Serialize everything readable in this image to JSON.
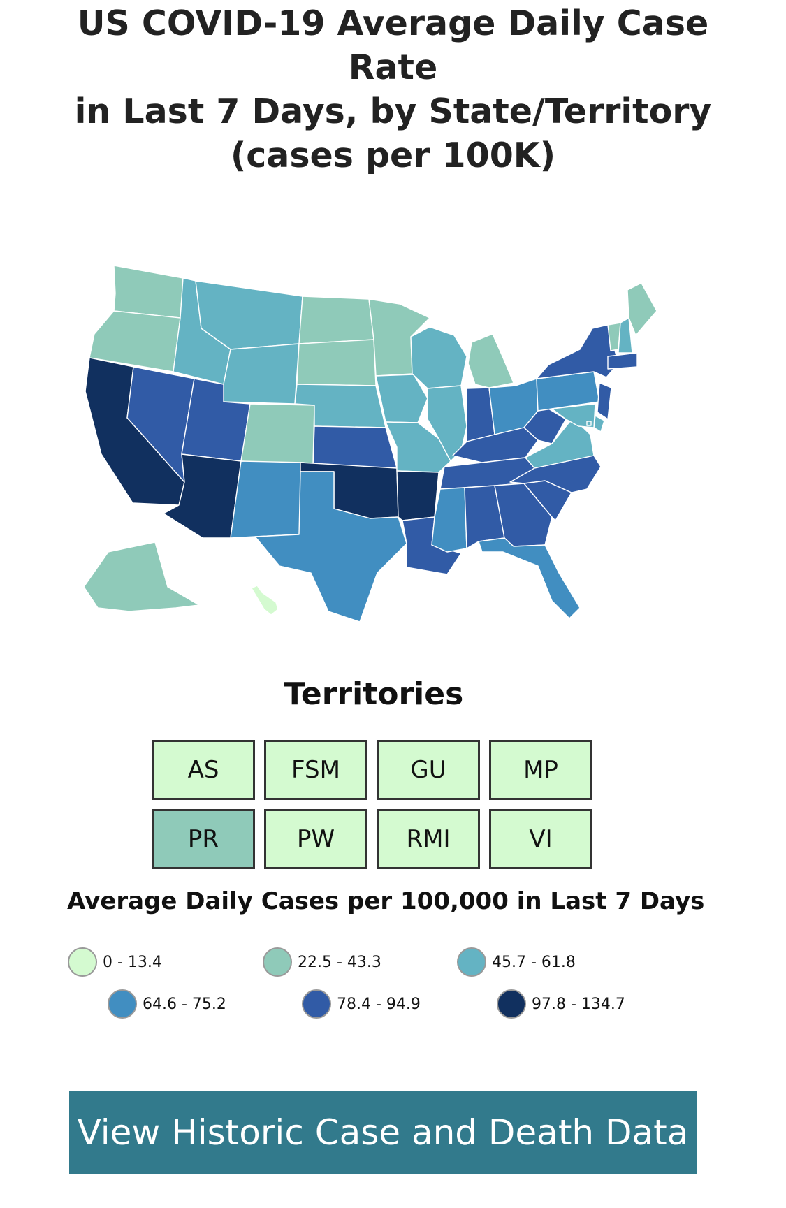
{
  "title_lines": [
    "US COVID-19 Average Daily Case Rate",
    "in Last 7 Days, by State/Territory",
    "(cases per 100K)"
  ],
  "colors": {
    "bin1": "#d4fad0",
    "bin2": "#8fcab9",
    "bin3": "#64b3c3",
    "bin4": "#418ec1",
    "bin5": "#315ba6",
    "bin6": "#11305f",
    "button_bg": "#327a8c",
    "state_border": "#ffffff"
  },
  "map": {
    "state_bins": {
      "WA": 2,
      "OR": 2,
      "CA": 6,
      "ID": 3,
      "NV": 5,
      "UT": 5,
      "AZ": 6,
      "MT": 3,
      "WY": 3,
      "CO": 2,
      "NM": 4,
      "ND": 2,
      "SD": 2,
      "NE": 3,
      "KS": 5,
      "OK": 6,
      "TX": 4,
      "MN": 2,
      "IA": 3,
      "MO": 3,
      "AR": 6,
      "LA": 5,
      "WI": 3,
      "IL": 3,
      "MI": 2,
      "IN": 5,
      "OH": 4,
      "KY": 5,
      "TN": 5,
      "MS": 4,
      "AL": 5,
      "GA": 5,
      "FL": 4,
      "SC": 5,
      "NC": 5,
      "VA": 3,
      "WV": 5,
      "PA": 4,
      "NY": 5,
      "ME": 2,
      "VT": 2,
      "NH": 3,
      "MA": 5,
      "NJ": 5,
      "DE": 3,
      "MD": 3,
      "AK": 2,
      "HI": 1,
      "DC": 3
    }
  },
  "territories": {
    "heading": "Territories",
    "items": [
      {
        "label": "AS",
        "bin": 1
      },
      {
        "label": "FSM",
        "bin": 1
      },
      {
        "label": "GU",
        "bin": 1
      },
      {
        "label": "MP",
        "bin": 1
      },
      {
        "label": "PR",
        "bin": 2
      },
      {
        "label": "PW",
        "bin": 1
      },
      {
        "label": "RMI",
        "bin": 1
      },
      {
        "label": "VI",
        "bin": 1
      }
    ]
  },
  "legend": {
    "title": "Average Daily Cases per 100,000 in Last 7 Days",
    "items": [
      {
        "label": "0 - 13.4",
        "color": "#d4fad0"
      },
      {
        "label": "22.5 - 43.3",
        "color": "#8fcab9"
      },
      {
        "label": "45.7 - 61.8",
        "color": "#64b3c3"
      },
      {
        "label": "64.6 - 75.2",
        "color": "#418ec1"
      },
      {
        "label": "78.4 - 94.9",
        "color": "#315ba6"
      },
      {
        "label": "97.8 - 134.7",
        "color": "#11305f"
      }
    ]
  },
  "cta": {
    "label": "View Historic Case and Death Data"
  }
}
